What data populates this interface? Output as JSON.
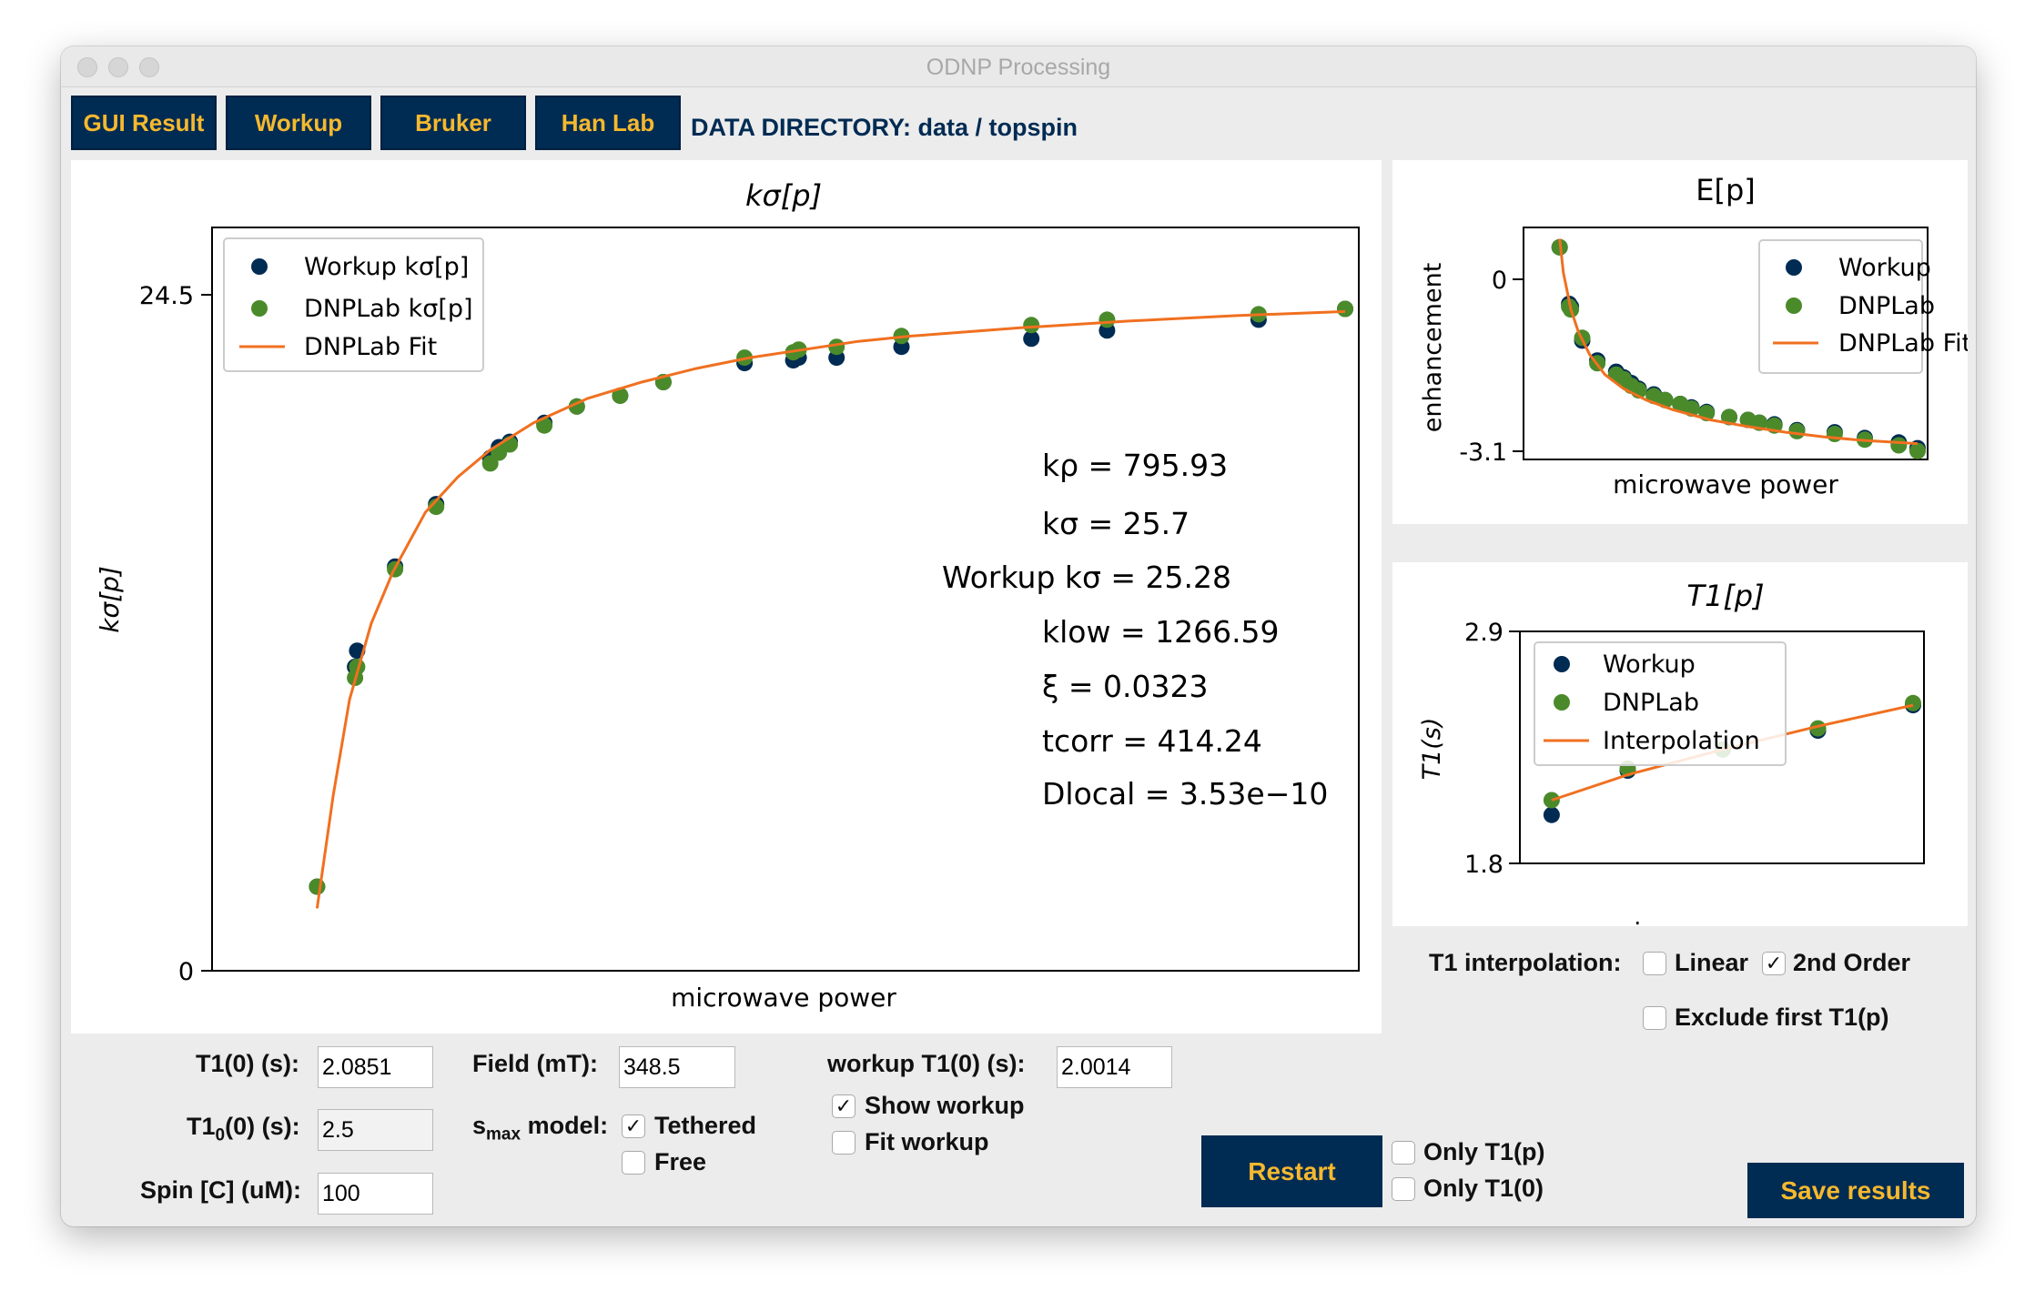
{
  "window": {
    "title": "ODNP Processing"
  },
  "tabs": [
    "GUI Result",
    "Workup",
    "Bruker",
    "Han Lab"
  ],
  "data_directory": "DATA DIRECTORY: data / topspin",
  "colors": {
    "workup": "#002b53",
    "dnplab": "#4a8a2a",
    "fit": "#f07020",
    "accent": "#f5b82e"
  },
  "main_chart": {
    "title": "kσ[p]",
    "xlabel": "microwave power",
    "ylabel": "kσ[p]",
    "yticks": [
      "24.5",
      "0"
    ],
    "legend": [
      "Workup kσ[p]",
      "DNPLab kσ[p]",
      "DNPLab Fit"
    ],
    "annotations": [
      "kρ = 795.93",
      "kσ = 25.7",
      "Workup kσ = 25.28",
      "klow = 1266.59",
      "ξ = 0.0323",
      "tcorr = 414.24",
      "Dlocal = 3.53e−10"
    ]
  },
  "e_chart": {
    "title": "E[p]",
    "xlabel": "microwave power",
    "ylabel": "enhancement",
    "yticks": [
      "0",
      "-3.1"
    ],
    "legend": [
      "Workup",
      "DNPLab",
      "DNPLab Fit"
    ]
  },
  "t1_chart": {
    "title": "T1[p]",
    "xlabel": "microwave power",
    "ylabel": "T1(s)",
    "yticks": [
      "2.9",
      "1.8"
    ],
    "legend": [
      "Workup",
      "DNPLab",
      "Interpolation"
    ]
  },
  "chart_data": [
    {
      "type": "scatter",
      "title": "kσ[p]",
      "xlabel": "microwave power",
      "ylabel": "kσ[p]",
      "ylim": [
        0,
        27.4
      ],
      "yticks": [
        0,
        24.5
      ],
      "x": [
        0.05,
        0.085,
        0.087,
        0.122,
        0.16,
        0.21,
        0.218,
        0.228,
        0.26,
        0.29,
        0.33,
        0.37,
        0.445,
        0.49,
        0.495,
        0.53,
        0.59,
        0.71,
        0.78,
        0.92,
        1.0
      ],
      "series": [
        {
          "name": "Workup kσ[p]",
          "values": [
            3.1,
            11.2,
            11.8,
            14.9,
            17.2,
            18.9,
            19.3,
            19.5,
            20.2,
            20.8,
            21.2,
            21.7,
            22.4,
            22.5,
            22.6,
            22.6,
            23.0,
            23.3,
            23.6,
            24.0,
            24.4
          ]
        },
        {
          "name": "DNPLab kσ[p]",
          "values": [
            3.1,
            10.8,
            11.2,
            14.8,
            17.1,
            18.7,
            19.1,
            19.4,
            20.1,
            20.8,
            21.2,
            21.7,
            22.6,
            22.8,
            22.9,
            23.0,
            23.4,
            23.8,
            24.0,
            24.2,
            24.4
          ]
        },
        {
          "name": "DNPLab Fit",
          "kind": "line",
          "x": [
            0.05,
            0.065,
            0.08,
            0.1,
            0.12,
            0.15,
            0.18,
            0.21,
            0.25,
            0.3,
            0.35,
            0.4,
            0.45,
            0.5,
            0.55,
            0.6,
            0.7,
            0.8,
            0.9,
            1.0
          ],
          "values": [
            2.3,
            6.5,
            10.0,
            12.8,
            14.7,
            16.9,
            18.2,
            19.2,
            20.2,
            21.1,
            21.7,
            22.2,
            22.6,
            22.9,
            23.2,
            23.4,
            23.7,
            23.95,
            24.15,
            24.3
          ]
        }
      ]
    },
    {
      "type": "scatter",
      "title": "E[p]",
      "xlabel": "microwave power",
      "ylabel": "enhancement",
      "ylim": [
        -3.2,
        0.9
      ],
      "yticks": [
        0,
        -3.1
      ],
      "x": [
        0.05,
        0.075,
        0.08,
        0.11,
        0.15,
        0.2,
        0.22,
        0.24,
        0.26,
        0.3,
        0.33,
        0.37,
        0.4,
        0.44,
        0.5,
        0.55,
        0.58,
        0.62,
        0.68,
        0.78,
        0.86,
        0.95,
        1.0
      ],
      "series": [
        {
          "name": "Workup",
          "values": [
            0.55,
            -0.45,
            -0.5,
            -1.1,
            -1.45,
            -1.65,
            -1.75,
            -1.85,
            -1.95,
            -2.05,
            -2.15,
            -2.22,
            -2.28,
            -2.36,
            -2.45,
            -2.5,
            -2.55,
            -2.58,
            -2.68,
            -2.72,
            -2.82,
            -2.9,
            -3.0
          ]
        },
        {
          "name": "DNPLab",
          "values": [
            0.55,
            -0.5,
            -0.55,
            -1.05,
            -1.5,
            -1.7,
            -1.78,
            -1.9,
            -1.98,
            -2.08,
            -2.15,
            -2.22,
            -2.3,
            -2.38,
            -2.45,
            -2.5,
            -2.55,
            -2.6,
            -2.7,
            -2.75,
            -2.85,
            -2.95,
            -3.05
          ]
        },
        {
          "name": "DNPLab Fit",
          "kind": "line",
          "x": [
            0.05,
            0.06,
            0.08,
            0.1,
            0.13,
            0.17,
            0.22,
            0.28,
            0.35,
            0.45,
            0.55,
            0.65,
            0.75,
            0.85,
            1.0
          ],
          "values": [
            0.7,
            0.1,
            -0.55,
            -0.95,
            -1.35,
            -1.7,
            -1.95,
            -2.15,
            -2.32,
            -2.5,
            -2.62,
            -2.72,
            -2.8,
            -2.86,
            -2.92
          ]
        }
      ]
    },
    {
      "type": "scatter",
      "title": "T1[p]",
      "xlabel": "microwave power",
      "ylabel": "T1(s)",
      "ylim": [
        1.8,
        2.9
      ],
      "yticks": [
        1.8,
        2.9
      ],
      "x": [
        0.05,
        0.25,
        0.5,
        0.75,
        1.0
      ],
      "series": [
        {
          "name": "Workup",
          "values": [
            2.03,
            2.24,
            2.34,
            2.43,
            2.55
          ]
        },
        {
          "name": "DNPLab",
          "values": [
            2.1,
            2.25,
            2.34,
            2.44,
            2.56
          ]
        },
        {
          "name": "Interpolation",
          "kind": "line",
          "x": [
            0.05,
            0.25,
            0.5,
            0.75,
            1.0
          ],
          "values": [
            2.1,
            2.22,
            2.34,
            2.45,
            2.55
          ]
        }
      ]
    }
  ],
  "controls": {
    "t1_0_label": "T1(0) (s):",
    "t1_0_value": "2.0851",
    "t10_0_label_main": "T1",
    "t10_0_label_sub": "0",
    "t10_0_label_rest": "(0) (s):",
    "t10_0_value": "2.5",
    "spin_label": "Spin [C] (uM):",
    "spin_value": "100",
    "field_label": "Field (mT):",
    "field_value": "348.5",
    "smax_label_main": "s",
    "smax_label_sub": "max",
    "smax_label_rest": " model:",
    "tethered_label": "Tethered",
    "free_label": "Free",
    "workup_t1_label": "workup T1(0) (s):",
    "workup_t1_value": "2.0014",
    "show_workup_label": "Show workup",
    "fit_workup_label": "Fit workup",
    "t1_interp_label": "T1 interpolation:",
    "linear_label": "Linear",
    "second_order_label": "2nd Order",
    "exclude_label": "Exclude first T1(p)",
    "restart_label": "Restart",
    "only_t1p_label": "Only T1(p)",
    "only_t10_label": "Only T1(0)",
    "save_label": "Save results",
    "check_mark": "✓"
  }
}
